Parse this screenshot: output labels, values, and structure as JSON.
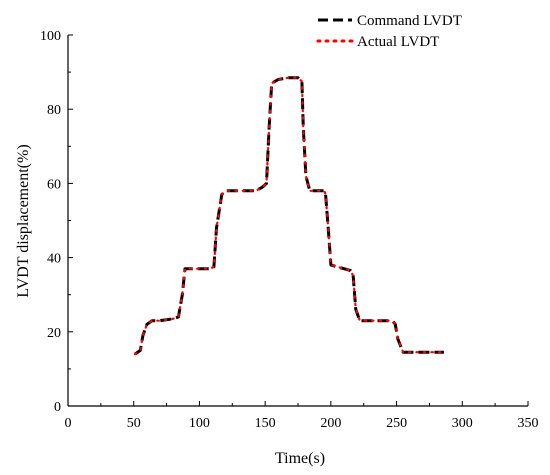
{
  "chart_data": {
    "type": "line",
    "xlabel": "Time(s)",
    "ylabel": "LVDT displacement(%)",
    "xlim": [
      0,
      350
    ],
    "ylim": [
      0,
      100
    ],
    "xticks": [
      0,
      50,
      100,
      150,
      200,
      250,
      300,
      350
    ],
    "yticks": [
      0,
      20,
      40,
      60,
      80,
      100
    ],
    "grid": false,
    "legend_position": "top-right",
    "series": [
      {
        "name": "Command LVDT",
        "style": "dashed",
        "color": "#000000",
        "x": [
          51,
          55,
          57,
          60,
          64,
          70,
          80,
          84,
          87,
          89,
          95,
          108,
          111,
          113,
          117,
          120,
          130,
          143,
          148,
          151,
          153,
          155,
          160,
          168,
          175,
          178,
          179,
          181,
          184,
          195,
          196,
          198,
          200,
          210,
          215,
          217,
          219,
          222,
          235,
          247,
          249,
          251,
          255,
          260,
          275,
          286
        ],
        "y": [
          14,
          15,
          19,
          22,
          23,
          23,
          23.5,
          24,
          30,
          37,
          37,
          37,
          37.5,
          48,
          57,
          58,
          58,
          58,
          59,
          60,
          75,
          87,
          88,
          88.5,
          88.5,
          87.5,
          75,
          62,
          58,
          58,
          57,
          48,
          38,
          37,
          36.5,
          35,
          26,
          23,
          23,
          23,
          22,
          18,
          14.5,
          14.5,
          14.5,
          14.5
        ]
      },
      {
        "name": "Actual LVDT",
        "style": "dotted",
        "color": "#ff0000",
        "x": [
          51,
          55,
          57,
          60,
          64,
          70,
          80,
          84,
          87,
          89,
          95,
          108,
          111,
          113,
          117,
          120,
          130,
          143,
          148,
          151,
          153,
          155,
          160,
          168,
          175,
          178,
          179,
          181,
          184,
          195,
          196,
          198,
          200,
          210,
          215,
          217,
          219,
          222,
          235,
          247,
          249,
          251,
          255,
          260,
          275,
          286
        ],
        "y": [
          14,
          15,
          19,
          22,
          23,
          23,
          23.5,
          24,
          30,
          37,
          37,
          37,
          37.5,
          48,
          57,
          58,
          58,
          58,
          59,
          60,
          75,
          87,
          88,
          88.5,
          88.5,
          87.5,
          75,
          62,
          58,
          58,
          57,
          48,
          38,
          37,
          36.5,
          35,
          26,
          23,
          23,
          23,
          22,
          18,
          14.5,
          14.5,
          14.5,
          14.5
        ]
      }
    ]
  }
}
